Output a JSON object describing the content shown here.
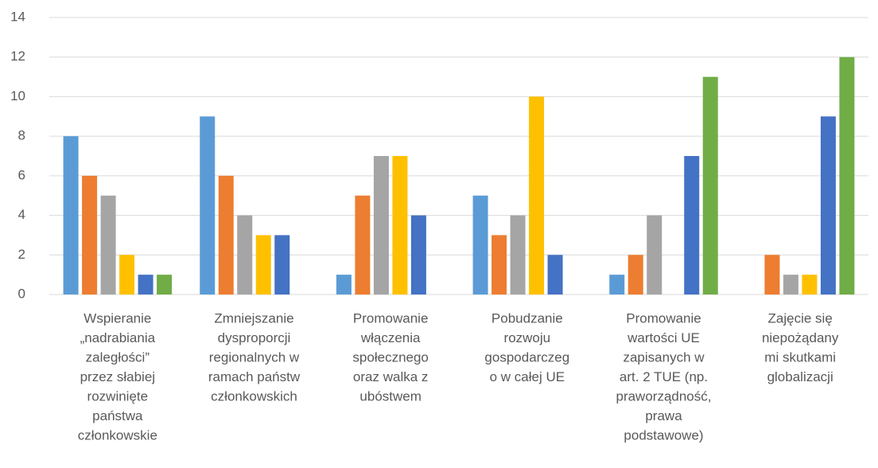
{
  "chart_data": {
    "type": "bar",
    "categories": [
      [
        "Wspieranie",
        "„nadrabiania",
        "zaległości”",
        "przez słabiej",
        "rozwinięte",
        "państwa",
        "członkowskie"
      ],
      [
        "Zmniejszanie",
        "dysproporcji",
        "regionalnych w",
        "ramach państw",
        "członkowskich"
      ],
      [
        "Promowanie",
        "włączenia",
        "społecznego",
        "oraz walka z",
        "ubóstwem"
      ],
      [
        "Pobudzanie",
        "rozwoju",
        "gospodarczeg",
        "o w całej UE"
      ],
      [
        "Promowanie",
        "wartości UE",
        "zapisanych w",
        "art. 2 TUE (np.",
        "praworządność,",
        "prawa",
        "podstawowe)"
      ],
      [
        "Zajęcie się",
        "niepożądany",
        "mi skutkami",
        "globalizacji"
      ]
    ],
    "series": [
      {
        "color": "#5b9bd5",
        "values": [
          8,
          9,
          1,
          5,
          1,
          0
        ]
      },
      {
        "color": "#ed7d31",
        "values": [
          6,
          6,
          5,
          3,
          2,
          2
        ]
      },
      {
        "color": "#a5a5a5",
        "values": [
          5,
          4,
          7,
          4,
          4,
          1
        ]
      },
      {
        "color": "#ffc000",
        "values": [
          2,
          3,
          7,
          10,
          0,
          1
        ]
      },
      {
        "color": "#4472c4",
        "values": [
          1,
          3,
          4,
          2,
          7,
          9
        ]
      },
      {
        "color": "#70ad47",
        "values": [
          1,
          0,
          0,
          0,
          11,
          12
        ]
      }
    ],
    "ylim": [
      0,
      14
    ],
    "yticks": [
      0,
      2,
      4,
      6,
      8,
      10,
      12,
      14
    ],
    "grid": true
  }
}
